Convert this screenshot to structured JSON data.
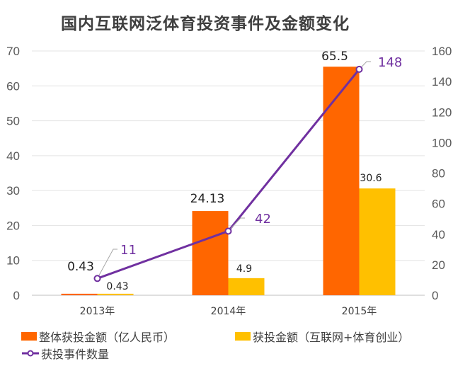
{
  "chart_data": {
    "type": "bar+line",
    "title": "国内互联网泛体育投资事件及金额变化",
    "categories": [
      "2013年",
      "2014年",
      "2015年"
    ],
    "series": [
      {
        "name": "整体获投金额（亿人民币）",
        "type": "bar",
        "axis": "left",
        "color": "#ff6600",
        "values": [
          0.43,
          24.13,
          65.5
        ],
        "labels": [
          "0.43",
          "24.13",
          "65.5"
        ]
      },
      {
        "name": "获投金额（互联网+体育创业）",
        "type": "bar",
        "axis": "left",
        "color": "#ffc000",
        "values": [
          0.43,
          4.9,
          30.6
        ],
        "labels": [
          "0.43",
          "4.9",
          "30.6"
        ]
      },
      {
        "name": "获投事件数量",
        "type": "line",
        "axis": "right",
        "color": "#7030a0",
        "values": [
          11,
          42,
          148
        ],
        "labels": [
          "11",
          "42",
          "148"
        ]
      }
    ],
    "ylim_left": [
      0,
      70
    ],
    "yticks_left": [
      "0",
      "10",
      "20",
      "30",
      "40",
      "50",
      "60",
      "70"
    ],
    "ylim_right": [
      0,
      160
    ],
    "yticks_right": [
      "0",
      "20",
      "40",
      "60",
      "80",
      "100",
      "120",
      "140",
      "160"
    ],
    "grid": true,
    "legend": "bottom"
  }
}
